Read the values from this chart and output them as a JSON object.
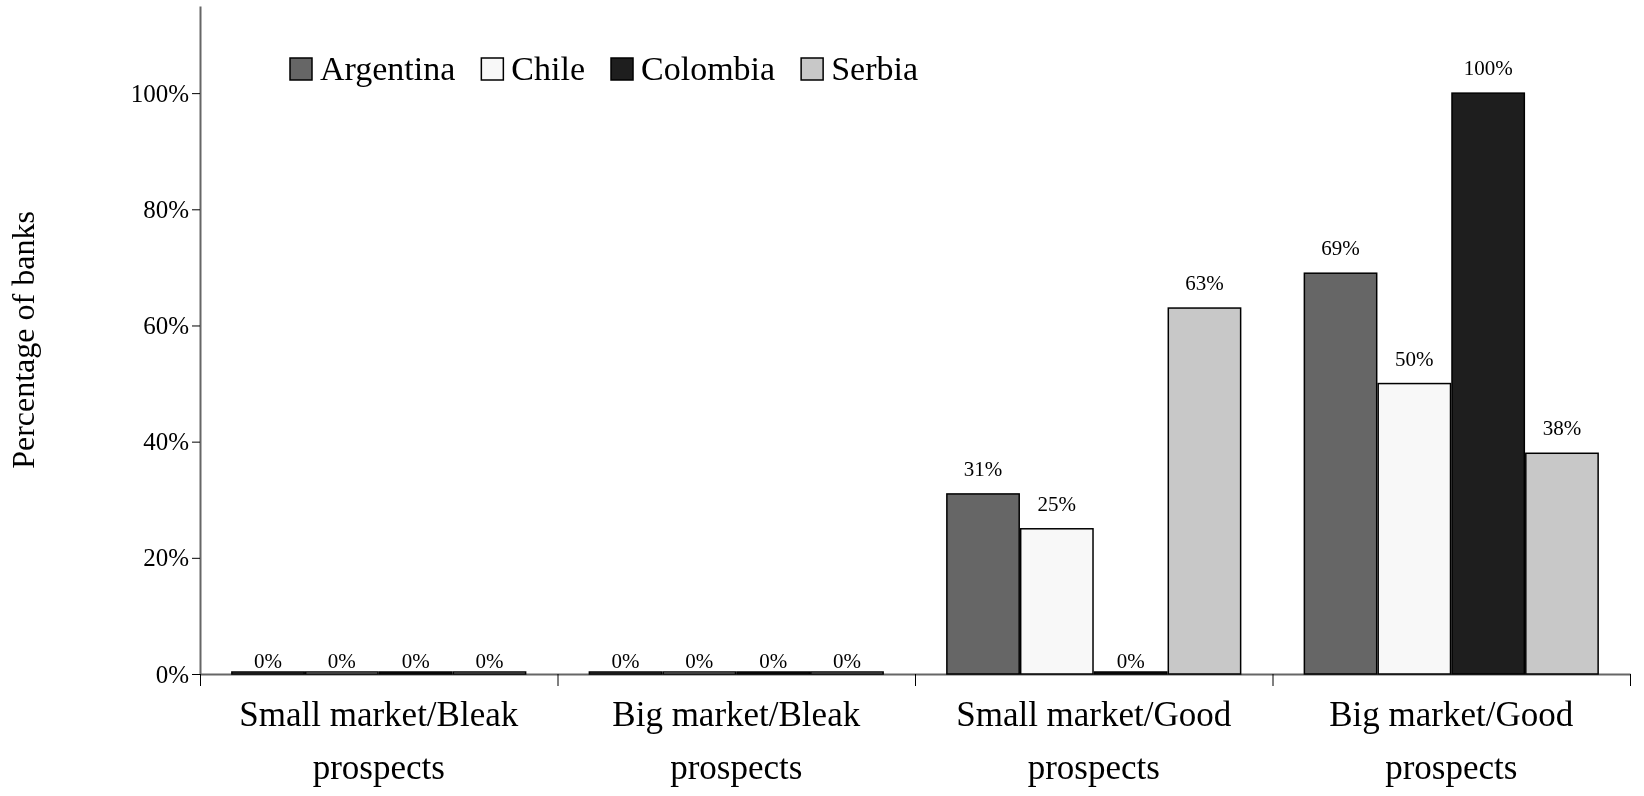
{
  "chart_data": {
    "type": "bar",
    "ylabel": "Percentage of banks",
    "categories": [
      "Small market/Bleak prospects",
      "Big market/Bleak prospects",
      "Small market/Good prospects",
      "Big market/Good prospects"
    ],
    "series": [
      {
        "name": "Argentina",
        "color": "#666666",
        "values": [
          0,
          0,
          31,
          69
        ],
        "value_labels": [
          "0%",
          "0%",
          "31%",
          "69%"
        ]
      },
      {
        "name": "Chile",
        "color": "#f8f8f8",
        "values": [
          0,
          0,
          25,
          50
        ],
        "value_labels": [
          "0%",
          "0%",
          "25%",
          "50%"
        ]
      },
      {
        "name": "Colombia",
        "color": "#1e1e1e",
        "values": [
          0,
          0,
          0,
          100
        ],
        "value_labels": [
          "0%",
          "0%",
          "0%",
          "100%"
        ]
      },
      {
        "name": "Serbia",
        "color": "#c8c8c8",
        "values": [
          0,
          0,
          63,
          38
        ],
        "value_labels": [
          "0%",
          "0%",
          "63%",
          "38%"
        ]
      }
    ],
    "ylim": [
      0,
      115
    ],
    "yticks": [
      {
        "value": 0,
        "label": "0%"
      },
      {
        "value": 20,
        "label": "20%"
      },
      {
        "value": 40,
        "label": "40%"
      },
      {
        "value": 60,
        "label": "60%"
      },
      {
        "value": 80,
        "label": "80%"
      },
      {
        "value": 100,
        "label": "100%"
      }
    ],
    "grid": false,
    "legend": "top left"
  }
}
